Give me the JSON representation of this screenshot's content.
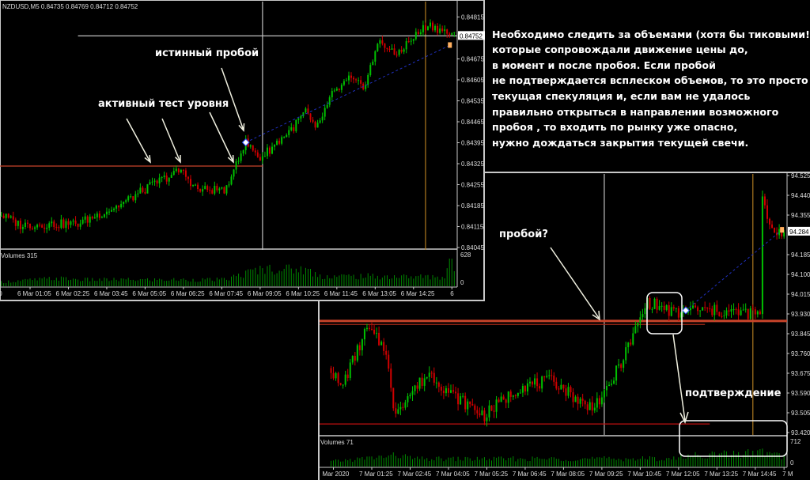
{
  "annotation_text": [
    "Необходимо следить за объемами (хотя бы тиковыми!),",
    "которые сопровождали движение цены до,",
    "в момент и после пробоя. Если пробой",
    "не подтверждается всплеском объемов, то это просто",
    "текущая спекуляция и, если вам не удалось",
    "правильно открыться в направлении возможного",
    "пробоя , то входить по рынку уже опасно,",
    "нужно дождаться закрытия текущей свечи."
  ],
  "colors": {
    "up": "#00c000",
    "down": "#d00000",
    "level": "#c8442a",
    "cursor": "#c0c0c0",
    "period": "#b07a20",
    "trend": "#2030c0"
  },
  "chart_data": [
    {
      "type": "candlestick",
      "title": "NZDUSD,M5  0.84735 0.84769 0.84712 0.84752",
      "symbol": "NZDUSD,M5",
      "ohlc_header": [
        "0.84735",
        "0.84769",
        "0.84712",
        "0.84752"
      ],
      "current_price": "0.84752",
      "ylim": [
        0.84045,
        0.84815
      ],
      "y_ticks": [
        "0.84815",
        "0.84675",
        "0.84605",
        "0.84535",
        "0.84465",
        "0.84395",
        "0.84325",
        "0.84255",
        "0.84185",
        "0.84115",
        "0.84045"
      ],
      "y_tick_values": [
        0.84815,
        0.84675,
        0.84605,
        0.84535,
        0.84465,
        0.84395,
        0.84325,
        0.84255,
        0.84185,
        0.84115,
        0.84045
      ],
      "x_ticks": [
        "ar 2020",
        "6 Mar 01:05",
        "6 Mar 02:25",
        "6 Mar 03:45",
        "6 Mar 05:05",
        "6 Mar 06:25",
        "6 Mar 07:45",
        "6 Mar 09:05",
        "6 Mar 10:25",
        "6 Mar 11:45",
        "6 Mar 13:05",
        "6 Mar 14:25",
        "6"
      ],
      "x_tick_times": [
        -15,
        65,
        145,
        225,
        305,
        385,
        465,
        545,
        625,
        705,
        785,
        865,
        945
      ],
      "close_path": [
        [
          "00:00",
          0.84158
        ],
        [
          "00:45",
          0.8412
        ],
        [
          "02:45",
          0.84125
        ],
        [
          "04:10",
          0.84185
        ],
        [
          "05:30",
          0.84264
        ],
        [
          "06:20",
          0.84303
        ],
        [
          "06:55",
          0.84237
        ],
        [
          "08:00",
          0.8424
        ],
        [
          "08:10",
          0.84317
        ],
        [
          "08:35",
          0.84396
        ],
        [
          "09:05",
          0.84343
        ],
        [
          "09:40",
          0.84396
        ],
        [
          "10:15",
          0.84448
        ],
        [
          "10:40",
          0.84501
        ],
        [
          "11:00",
          0.84435
        ],
        [
          "11:35",
          0.84554
        ],
        [
          "12:10",
          0.84607
        ],
        [
          "12:40",
          0.8458
        ],
        [
          "13:15",
          0.84739
        ],
        [
          "13:45",
          0.84686
        ],
        [
          "14:20",
          0.84739
        ],
        [
          "14:55",
          0.84791
        ],
        [
          "15:50",
          0.84752
        ]
      ],
      "levels": [
        {
          "price": 0.84752,
          "from": "02:45",
          "color": "#c0c0c0"
        },
        {
          "price": 0.84317,
          "to": "09:10",
          "color": "#c8442a"
        }
      ],
      "vlines": [
        {
          "time": "09:10",
          "color": "#c0c0c0"
        },
        {
          "time": "14:50",
          "color": "#b07a20"
        }
      ],
      "trendline": [
        [
          "08:35",
          0.84396
        ],
        [
          "15:40",
          0.8472
        ]
      ],
      "volume": {
        "label": "Volumes 315",
        "max_label": "628",
        "zero_label": "0",
        "ymax": 628,
        "profile": [
          [
            "00:00",
            90
          ],
          [
            "02:00",
            170
          ],
          [
            "03:00",
            140
          ],
          [
            "07:50",
            140
          ],
          [
            "09:10",
            380
          ],
          [
            "10:40",
            360
          ],
          [
            "11:10",
            220
          ],
          [
            "15:30",
            200
          ],
          [
            "15:40",
            600
          ],
          [
            "15:50",
            330
          ]
        ]
      },
      "callouts": [
        {
          "text": "истинный пробой"
        },
        {
          "text": "активный тест уровня"
        }
      ]
    },
    {
      "type": "candlestick",
      "current_price": "94.284",
      "ylim": [
        93.42,
        94.525
      ],
      "y_ticks": [
        "94.525",
        "94.440",
        "94.355",
        "94.185",
        "94.100",
        "94.015",
        "93.930",
        "93.845",
        "93.760",
        "93.675",
        "93.590",
        "93.505",
        "93.420"
      ],
      "y_tick_values": [
        94.525,
        94.44,
        94.355,
        94.185,
        94.1,
        94.015,
        93.93,
        93.845,
        93.76,
        93.675,
        93.59,
        93.505,
        93.42
      ],
      "x_ticks": [
        "Mar 2020",
        "7 Mar 01:25",
        "7 Mar 02:45",
        "7 Mar 04:05",
        "7 Mar 05:25",
        "7 Mar 06:45",
        "7 Mar 08:05",
        "7 Mar 09:25",
        "7 Mar 10:45",
        "7 Mar 12:05",
        "7 Mar 13:25",
        "7 Mar 14:45",
        "7 M"
      ],
      "x_tick_times": [
        5,
        85,
        165,
        245,
        325,
        405,
        485,
        565,
        645,
        725,
        805,
        885,
        945
      ],
      "close_path": [
        [
          "00:00",
          93.697
        ],
        [
          "00:20",
          93.609
        ],
        [
          "01:15",
          93.866
        ],
        [
          "01:55",
          93.778
        ],
        [
          "02:10",
          93.508
        ],
        [
          "03:25",
          93.677
        ],
        [
          "04:10",
          93.586
        ],
        [
          "05:20",
          93.494
        ],
        [
          "06:35",
          93.619
        ],
        [
          "07:45",
          93.643
        ],
        [
          "08:55",
          93.528
        ],
        [
          "09:30",
          93.575
        ],
        [
          "10:20",
          93.788
        ],
        [
          "11:00",
          93.981
        ],
        [
          "12:10",
          93.924
        ],
        [
          "12:20",
          93.95
        ],
        [
          "14:55",
          93.93
        ],
        [
          "15:00",
          94.413
        ],
        [
          "15:20",
          94.295
        ],
        [
          "15:45",
          94.284
        ]
      ],
      "levels": [
        {
          "price": 93.9,
          "color": "#c8442a"
        },
        {
          "price": 93.885,
          "to": "13:00",
          "color": "#a02818"
        },
        {
          "price": 93.457,
          "to": "13:10",
          "color": "#c01010"
        }
      ],
      "vlines": [
        {
          "time": "09:30",
          "color": "#c0c0c0"
        },
        {
          "time": "14:40",
          "color": "#b07a20"
        }
      ],
      "trendline": [
        [
          "12:20",
          93.945
        ],
        [
          "15:40",
          94.29
        ]
      ],
      "volume": {
        "label": "Volumes 71",
        "max_label": "712",
        "zero_label": "0",
        "ymax": 712,
        "profile": [
          [
            "00:00",
            150
          ],
          [
            "02:20",
            340
          ],
          [
            "03:00",
            230
          ],
          [
            "12:00",
            240
          ],
          [
            "12:15",
            330
          ],
          [
            "14:00",
            380
          ],
          [
            "15:00",
            440
          ],
          [
            "15:45",
            300
          ]
        ]
      },
      "callouts": [
        {
          "text": "пробой?"
        },
        {
          "text": "подтверждение"
        }
      ]
    }
  ]
}
